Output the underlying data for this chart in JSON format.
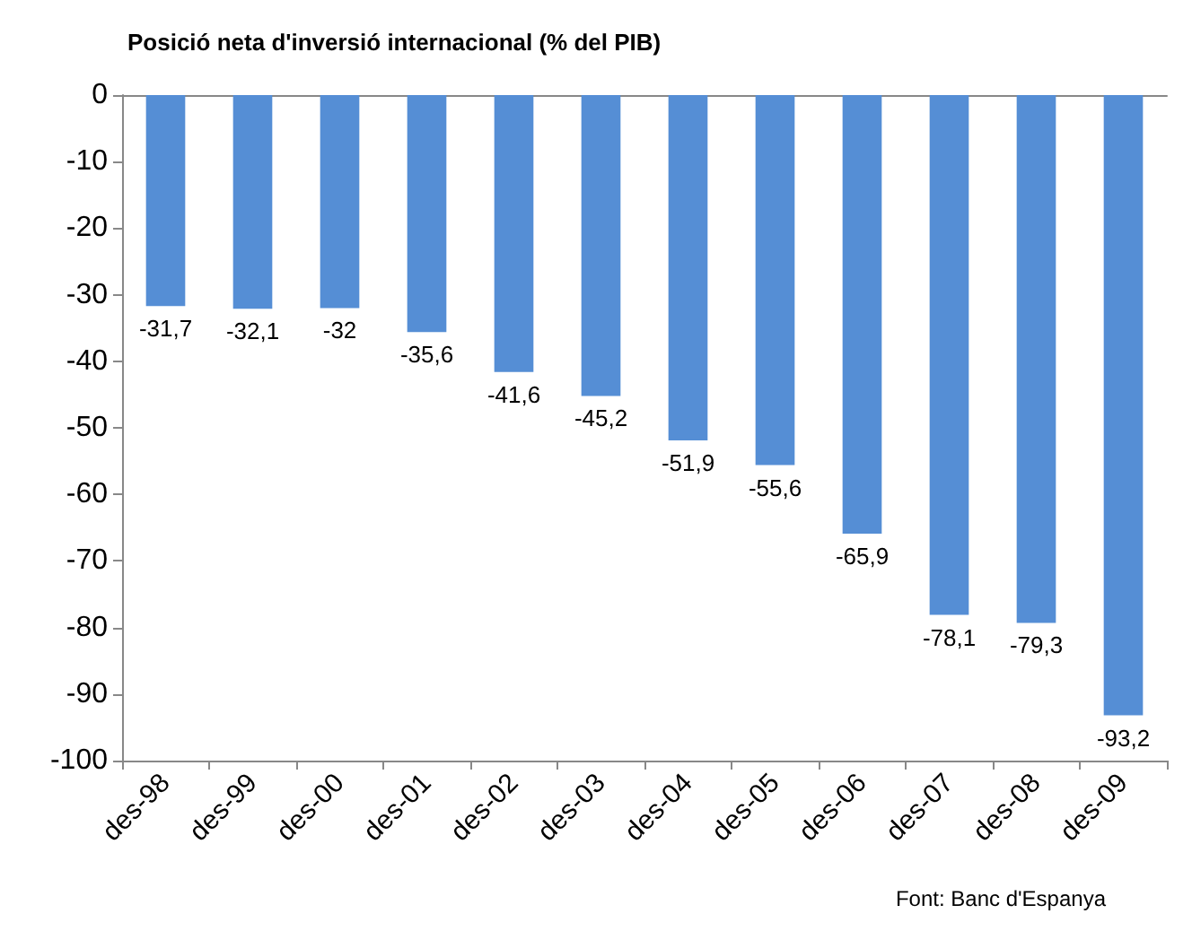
{
  "chart_data": {
    "type": "bar",
    "title": "Posició neta d'inversió internacional (% del PIB)",
    "categories": [
      "des-98",
      "des-99",
      "des-00",
      "des-01",
      "des-02",
      "des-03",
      "des-04",
      "des-05",
      "des-06",
      "des-07",
      "des-08",
      "des-09"
    ],
    "values": [
      -31.7,
      -32.1,
      -32,
      -35.6,
      -41.6,
      -45.2,
      -51.9,
      -55.6,
      -65.9,
      -78.1,
      -79.3,
      -93.2
    ],
    "value_labels": [
      "-31,7",
      "-32,1",
      "-32",
      "-35,6",
      "-41,6",
      "-45,2",
      "-51,9",
      "-55,6",
      "-65,9",
      "-78,1",
      "-79,3",
      "-93,2"
    ],
    "color": "#558ed5",
    "ylim": [
      -100,
      0
    ],
    "yticks": [
      0,
      -10,
      -20,
      -30,
      -40,
      -50,
      -60,
      -70,
      -80,
      -90,
      -100
    ],
    "grid": false,
    "annotations": [
      "Font: Banc d'Espanya"
    ]
  }
}
